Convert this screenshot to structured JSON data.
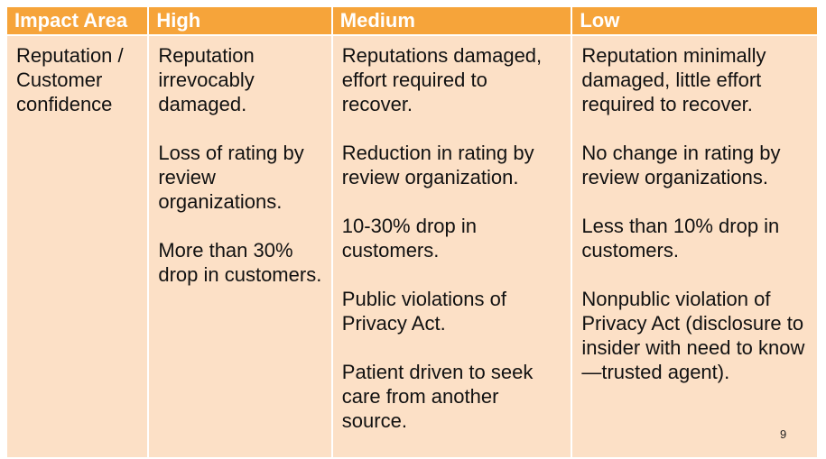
{
  "table": {
    "header": [
      "Impact Area",
      "High",
      "Medium",
      "Low"
    ],
    "rows": [
      [
        [
          "Reputation / Customer confidence"
        ],
        [
          "Reputation irrevocably damaged.",
          "Loss of rating by review organizations.",
          "More than 30% drop in customers."
        ],
        [
          "Reputations damaged, effort required to recover.",
          "Reduction in rating by review organization.",
          "10-30% drop in customers.",
          "Public violations of Privacy Act.",
          "Patient driven to seek care from another source."
        ],
        [
          "Reputation minimally damaged, little effort required to recover.",
          "No change in rating by review organizations.",
          "Less than 10% drop in customers.",
          "Nonpublic violation of Privacy Act (disclosure to insider with need to know—trusted agent)."
        ]
      ]
    ]
  },
  "page_number": "9"
}
